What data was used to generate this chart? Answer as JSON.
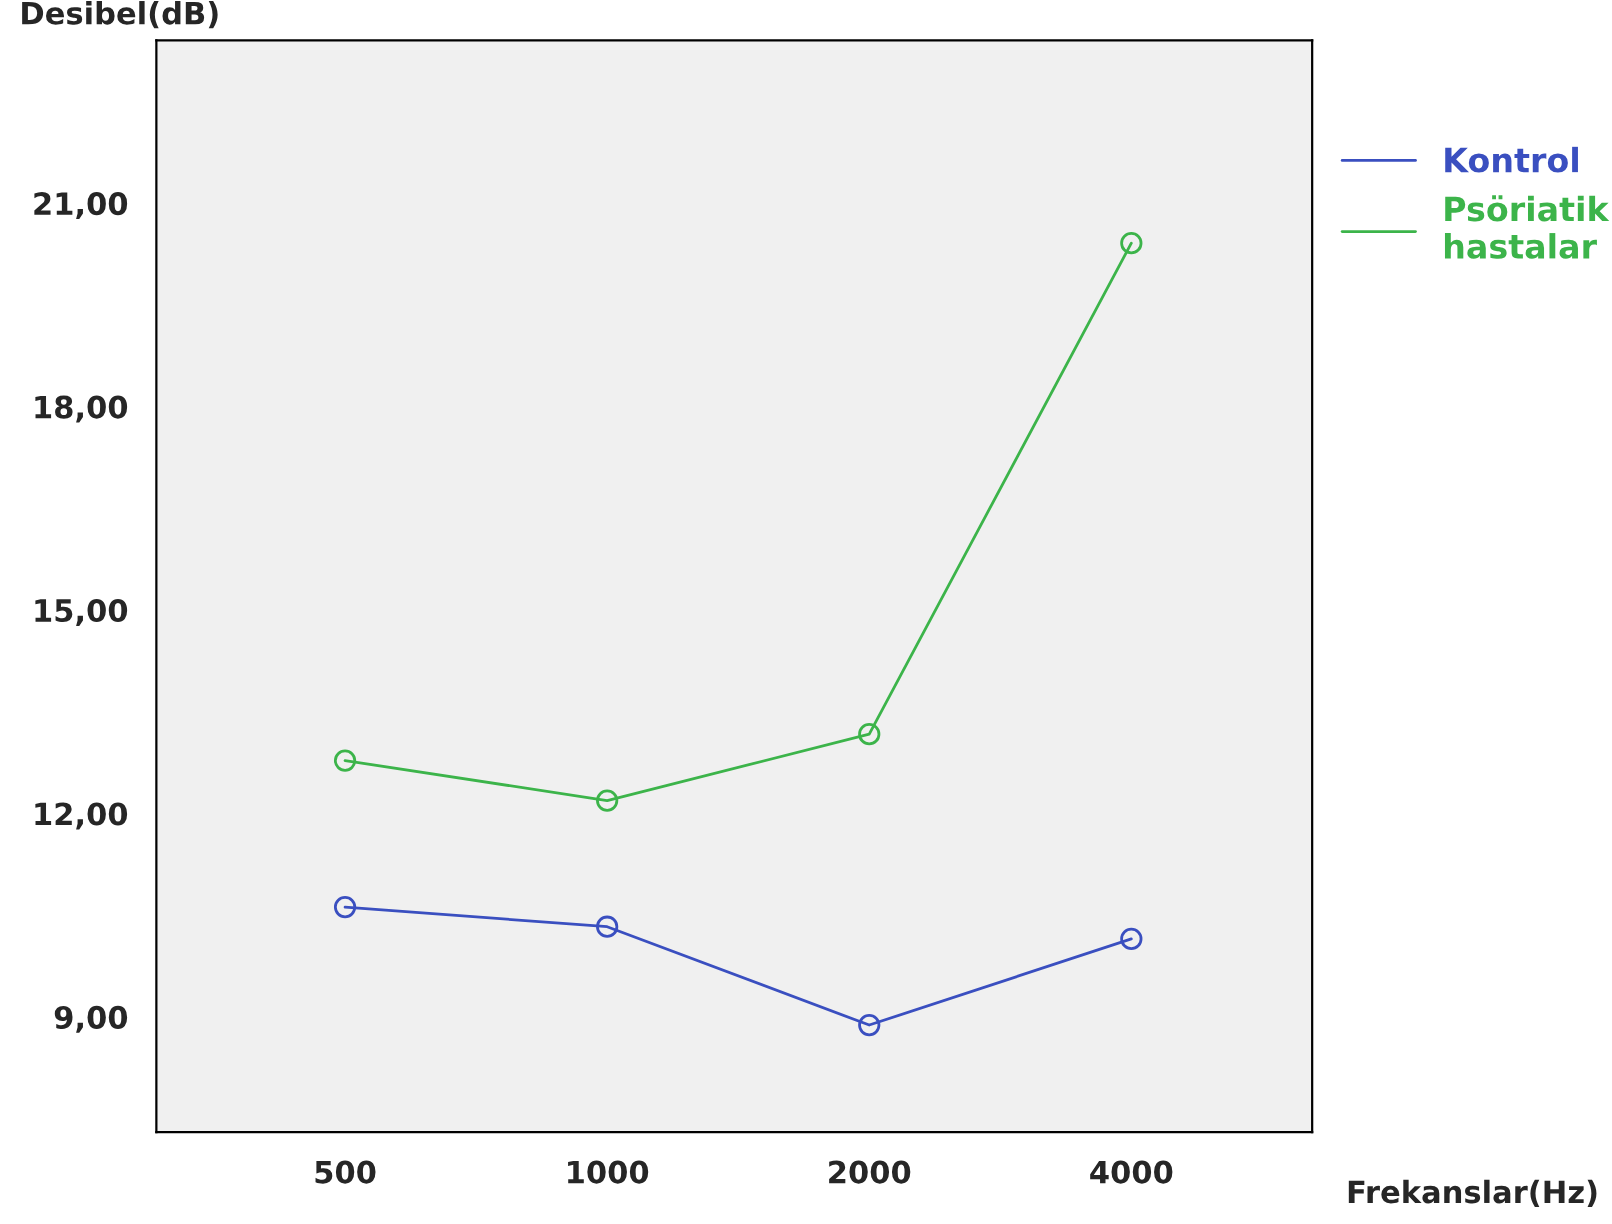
{
  "chart_data": {
    "type": "line",
    "xlabel": "Frekanslar(Hz)",
    "ylabel": "Desibel(dB)",
    "categories": [
      "500",
      "1000",
      "2000",
      "4000"
    ],
    "series": [
      {
        "name": "Kontrol",
        "color": "#3a4fc0",
        "values": [
          10.62,
          10.33,
          8.88,
          10.15
        ]
      },
      {
        "name": "Psöriatik\nhastalar",
        "color": "#3cb44a",
        "values": [
          12.78,
          12.19,
          13.17,
          20.41
        ]
      }
    ],
    "ylim": [
      7.3,
      23.4
    ],
    "yticks": [
      {
        "value": 9,
        "label": "9,00"
      },
      {
        "value": 12,
        "label": "12,00"
      },
      {
        "value": 15,
        "label": "15,00"
      },
      {
        "value": 18,
        "label": "18,00"
      },
      {
        "value": 21,
        "label": "21,00"
      }
    ],
    "marker": "circle",
    "line_style": "solid",
    "grid": false,
    "legend": "right"
  }
}
